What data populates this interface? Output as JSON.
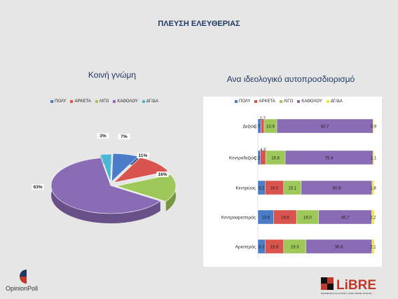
{
  "title": "ΠΛΕΥΣΗ ΕΛΕΥΘΕΡΙΑΣ",
  "left": {
    "title": "Κοινή γνώμη"
  },
  "right": {
    "title": "Ανα ιδεολογικό αυτοπροσδιορισμό"
  },
  "legend": [
    {
      "name": "ΠΟΛΥ",
      "color": "#4a7cc7"
    },
    {
      "name": "ΑΡΚΕΤΑ",
      "color": "#d9534f"
    },
    {
      "name": "ΛΙΓΟ",
      "color": "#9ec85a"
    },
    {
      "name": "ΚΑΘΟΛΟΥ",
      "color": "#8a6bb5"
    },
    {
      "name": "ΔΓ/ΔΑ",
      "color": "#4cb6d6"
    }
  ],
  "bar_legend": [
    {
      "name": "ΠΟΛΥ",
      "color": "#4a7cc7"
    },
    {
      "name": "ΑΡΚΕΤΑ",
      "color": "#d9534f"
    },
    {
      "name": "ΛΙΓΟ",
      "color": "#9ec85a"
    },
    {
      "name": "ΚΑΘΟΛΟΥ",
      "color": "#8a6bb5"
    },
    {
      "name": "ΔΓ/ΔΑ",
      "color": "#f4e93a"
    }
  ],
  "chart_data": [
    {
      "type": "pie",
      "title": "Κοινή γνώμη",
      "categories": [
        "ΠΟΛΥ",
        "ΑΡΚΕΤΑ",
        "ΛΙΓΟ",
        "ΚΑΘΟΛΟΥ",
        "ΔΓ/ΔΑ"
      ],
      "values": [
        7,
        11,
        16,
        63,
        3
      ],
      "labels": [
        "7%",
        "11%",
        "16%",
        "63%",
        "3%"
      ],
      "colors": [
        "#4a7cc7",
        "#d9534f",
        "#9ec85a",
        "#8a6bb5",
        "#4cb6d6"
      ]
    },
    {
      "type": "bar",
      "orientation": "horizontal",
      "stacked": true,
      "title": "Ανα ιδεολογικό αυτοπροσδιορισμό",
      "categories": [
        "Δεξιός",
        "Κεντροδεξιός",
        "Κεντρώος",
        "Κεντροαριστερός",
        "Αριστερός"
      ],
      "series": [
        {
          "name": "ΠΟΛΥ",
          "values": [
            2.7,
            2.2,
            6.2,
            13.6,
            6.2
          ],
          "labels": [
            "2.7",
            "2.2",
            "6.2",
            "13.6",
            "6.2"
          ]
        },
        {
          "name": "ΑΡΚΕΤΑ",
          "values": [
            2.7,
            4.5,
            16.0,
            19.6,
            15.9
          ],
          "labels": [
            "2.7",
            "4.5",
            "16.0",
            "19.6",
            "15.9"
          ]
        },
        {
          "name": "ΛΙΓΟ",
          "values": [
            10.9,
            16.8,
            15.1,
            19.0,
            19.3
          ],
          "labels": [
            "10.9",
            "16.8",
            "15.1",
            "19.0",
            "19.3"
          ]
        },
        {
          "name": "ΚΑΘΟΛΟΥ",
          "values": [
            82.7,
            75.4,
            60.9,
            45.7,
            56.6
          ],
          "labels": [
            "82.7",
            "75.4",
            "60.9",
            "45.7",
            "56.6"
          ]
        },
        {
          "name": "ΔΓ/ΔΑ",
          "values": [
            0.9,
            1.1,
            1.8,
            2.2,
            2.1
          ],
          "labels": [
            "0.9",
            "1.1",
            "1.8",
            "2.2",
            "2.1"
          ]
        }
      ],
      "xlim": [
        0,
        100
      ]
    }
  ],
  "logos": {
    "left": "OpinionPoll",
    "right": "LiBRE",
    "right_tagline": "ΕΝΗΜΕΡΩΣΗ ΚΑΙ ΑΠΟΨΗ, ΟΠΩΣ ΠΡΕΠΕΙ ΝΑ ΕΙΝΑΙ..."
  }
}
